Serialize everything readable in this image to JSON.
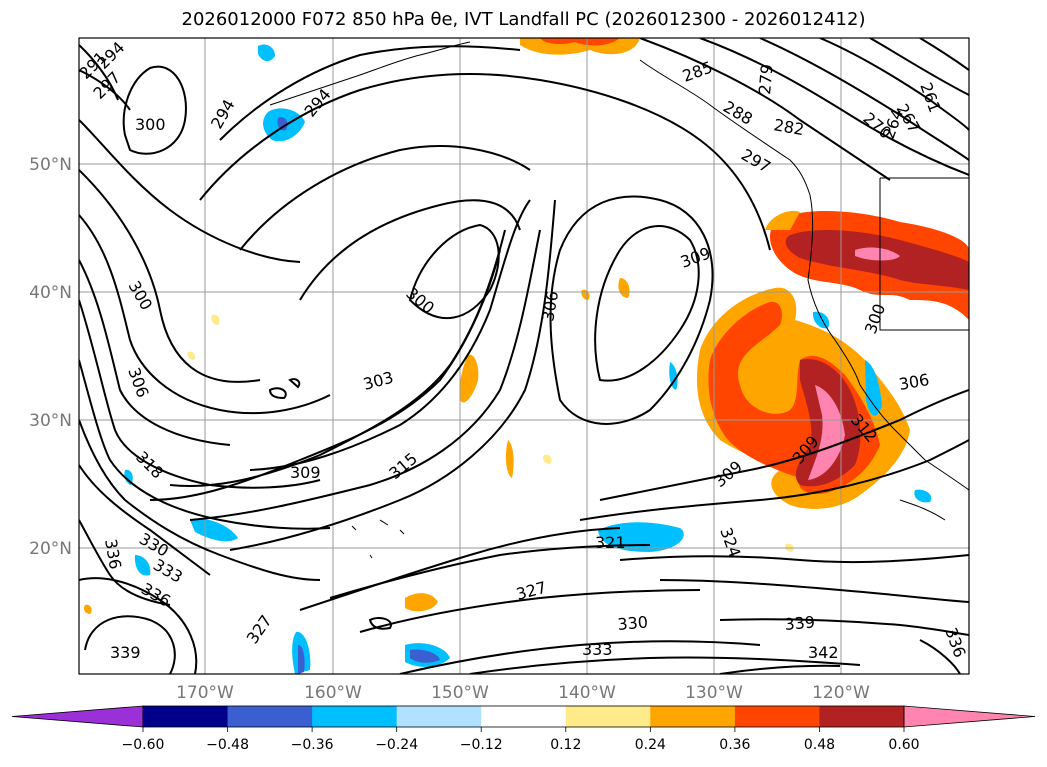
{
  "title": "2026012000 F072 850 hPa θe, IVT Landfall PC (2026012300 - 2026012412)",
  "map": {
    "lat_labels": [
      "50°N",
      "40°N",
      "30°N",
      "20°N"
    ],
    "lon_labels": [
      "170°W",
      "160°W",
      "150°W",
      "140°W",
      "130°W",
      "120°W"
    ],
    "contour_labels": [
      "291",
      "294",
      "297",
      "300",
      "294",
      "294",
      "285",
      "279",
      "282",
      "288",
      "261",
      "264",
      "270",
      "267",
      "297",
      "300",
      "309",
      "300",
      "306",
      "300",
      "303",
      "306",
      "318",
      "309",
      "315",
      "306",
      "309",
      "312",
      "330",
      "333",
      "336",
      "336",
      "321",
      "324",
      "327",
      "327",
      "330",
      "333",
      "339",
      "339",
      "342",
      "336"
    ]
  },
  "colorbar": {
    "ticks": [
      "−0.60",
      "−0.48",
      "−0.36",
      "−0.24",
      "−0.12",
      "0.12",
      "0.24",
      "0.36",
      "0.48",
      "0.60"
    ],
    "colors": [
      "#9b30d9",
      "#00008b",
      "#3a5fd0",
      "#00bfff",
      "#b0e2ff",
      "#ffffff",
      "#ffeb8a",
      "#ffa500",
      "#ff4500",
      "#b22222",
      "#ff85b0"
    ]
  }
}
